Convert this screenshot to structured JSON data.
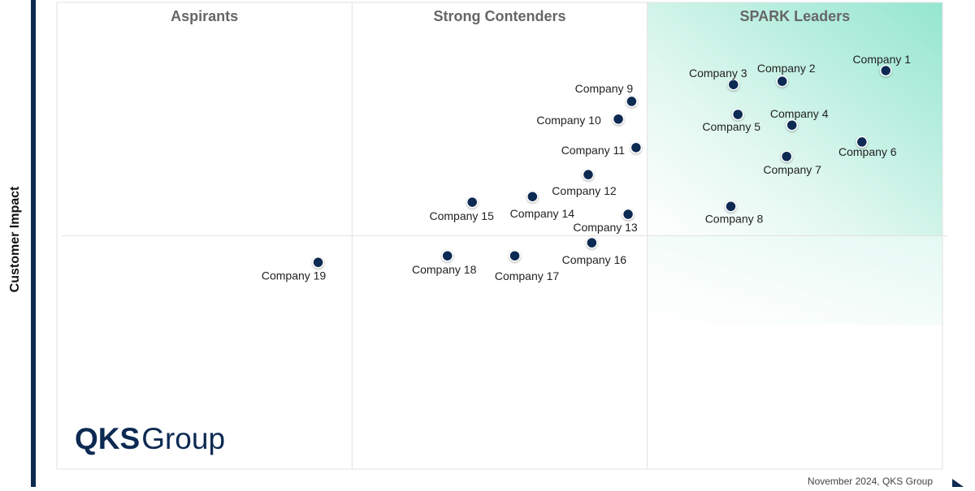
{
  "chart_data": {
    "type": "scatter",
    "y_label": "Customer Impact",
    "quadrants": [
      "Aspirants",
      "Strong Contenders",
      "SPARK Leaders"
    ],
    "footnote": "November 2024, QKS Group",
    "logo": [
      "QKS",
      "Group"
    ],
    "xlim": [
      0,
      100
    ],
    "ylim": [
      0,
      100
    ],
    "color": "#0d2a52",
    "points": [
      {
        "name": "Company 1",
        "x": 93.6,
        "y": 85.4
      },
      {
        "name": "Company 2",
        "x": 81.9,
        "y": 83.1
      },
      {
        "name": "Company 3",
        "x": 76.4,
        "y": 82.4
      },
      {
        "name": "Company 4",
        "x": 83.0,
        "y": 73.7
      },
      {
        "name": "Company 5",
        "x": 76.9,
        "y": 76.0
      },
      {
        "name": "Company 6",
        "x": 90.9,
        "y": 70.1
      },
      {
        "name": "Company 7",
        "x": 82.4,
        "y": 67.0
      },
      {
        "name": "Company 8",
        "x": 76.1,
        "y": 56.3
      },
      {
        "name": "Company 9",
        "x": 64.9,
        "y": 78.8
      },
      {
        "name": "Company 10",
        "x": 63.4,
        "y": 75.0
      },
      {
        "name": "Company 11",
        "x": 65.4,
        "y": 68.9
      },
      {
        "name": "Company 12",
        "x": 60.0,
        "y": 63.1
      },
      {
        "name": "Company 13",
        "x": 64.5,
        "y": 54.6
      },
      {
        "name": "Company 14",
        "x": 53.7,
        "y": 58.4
      },
      {
        "name": "Company 15",
        "x": 46.9,
        "y": 57.2
      },
      {
        "name": "Company 16",
        "x": 60.4,
        "y": 48.5
      },
      {
        "name": "Company 17",
        "x": 51.7,
        "y": 45.7
      },
      {
        "name": "Company 18",
        "x": 44.1,
        "y": 45.7
      },
      {
        "name": "Company 19",
        "x": 29.5,
        "y": 44.3
      }
    ]
  }
}
